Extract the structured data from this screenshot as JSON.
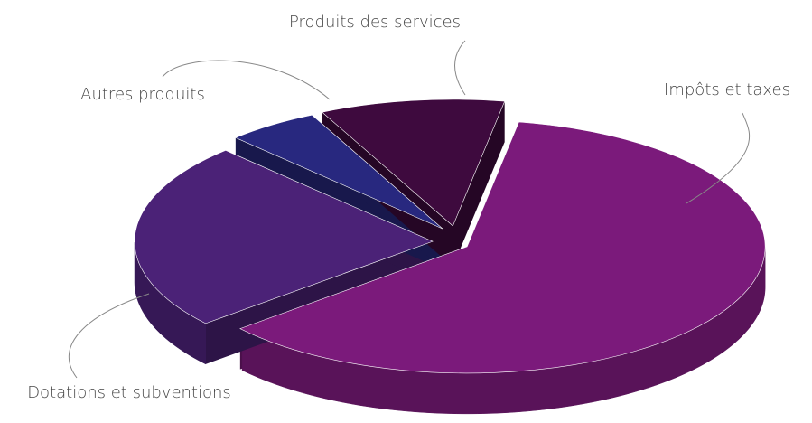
{
  "chart_data": {
    "type": "pie3d",
    "categories": [
      "Impôts et taxes",
      "Dotations et subventions",
      "Autres produits",
      "Produits des services"
    ],
    "values": [
      61,
      24,
      5,
      10
    ],
    "colors": [
      "#7b1a7b",
      "#4b2277",
      "#28287f",
      "#3e0a3e"
    ]
  }
}
